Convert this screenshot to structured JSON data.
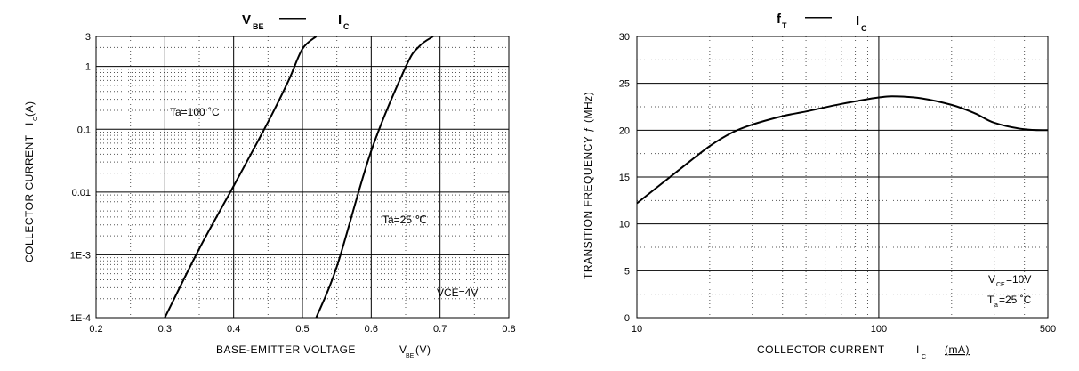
{
  "chart_data": [
    {
      "type": "line",
      "title": {
        "main": "V",
        "main_sub": "BE",
        "dash": "——",
        "right": "I",
        "right_sub": "C"
      },
      "xlabel": {
        "text": "BASE-EMITTER VOLTAGE",
        "symbol": "V",
        "symbol_sub": "BE",
        "unit": "(V)"
      },
      "ylabel": {
        "text": "COLLECTOR CURRENT",
        "symbol": "I",
        "symbol_sub": "C",
        "unit": "(A)"
      },
      "x_scale": "linear",
      "y_scale": "log",
      "xlim": [
        0.2,
        0.8
      ],
      "ylim": [
        0.0001,
        3
      ],
      "x_ticks": [
        0.2,
        0.3,
        0.4,
        0.5,
        0.6,
        0.7,
        0.8
      ],
      "x_tick_labels": [
        "0.2",
        "0.3",
        "0.4",
        "0.5",
        "0.6",
        "0.7",
        "0.8"
      ],
      "y_ticks": [
        0.0001,
        0.001,
        0.01,
        0.1,
        1,
        3
      ],
      "y_tick_labels": [
        "1E-4",
        "1E-3",
        "0.01",
        "0.1",
        "1",
        "3"
      ],
      "grid": "major solid, minor dotted",
      "series": [
        {
          "label": "Ta=100 ˚C",
          "x": [
            0.3,
            0.35,
            0.4,
            0.45,
            0.48,
            0.5,
            0.52
          ],
          "y": [
            0.0001,
            0.00125,
            0.0125,
            0.13,
            0.6,
            1.9,
            3
          ]
        },
        {
          "label": "Ta=25 ℃",
          "x": [
            0.52,
            0.55,
            0.6,
            0.65,
            0.67,
            0.69
          ],
          "y": [
            0.0001,
            0.00065,
            0.045,
            0.98,
            2.1,
            3
          ]
        }
      ],
      "annotations": [
        "VCE=4V"
      ]
    },
    {
      "type": "line",
      "title": {
        "main": "f",
        "main_sub": "T",
        "dash": "——",
        "right": "I",
        "right_sub": "C"
      },
      "xlabel": {
        "text": "COLLECTOR CURRENT",
        "symbol": "I",
        "symbol_sub": "C",
        "unit": "(mA)"
      },
      "ylabel": {
        "text": "TRANSITION FREQUENCY ƒ (MHz)"
      },
      "x_scale": "log",
      "y_scale": "linear",
      "xlim": [
        10,
        500
      ],
      "ylim": [
        0,
        30
      ],
      "x_ticks": [
        10,
        100,
        500
      ],
      "x_tick_labels": [
        "10",
        "100",
        "500"
      ],
      "y_ticks": [
        0,
        5,
        10,
        15,
        20,
        25,
        30
      ],
      "y_tick_labels": [
        "0",
        "5",
        "10",
        "15",
        "20",
        "25",
        "30"
      ],
      "grid": "major solid, minor dotted",
      "series": [
        {
          "x": [
            10,
            15,
            20,
            25,
            30,
            40,
            50,
            70,
            100,
            120,
            150,
            200,
            250,
            300,
            400,
            500
          ],
          "y": [
            12.2,
            15.8,
            18.3,
            19.8,
            20.6,
            21.5,
            22.0,
            22.8,
            23.5,
            23.6,
            23.4,
            22.7,
            21.8,
            20.8,
            20.1,
            20.0
          ]
        }
      ],
      "annotations": [
        {
          "main": "V",
          "sub": "CE",
          "rest": "=10V"
        },
        {
          "main": "T",
          "sub": "a",
          "rest": "=25 ˚C"
        }
      ]
    }
  ]
}
